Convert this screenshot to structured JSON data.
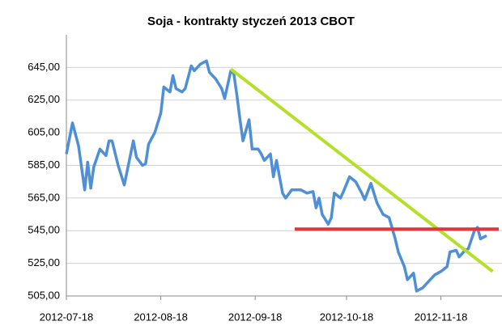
{
  "chart_data": {
    "type": "line",
    "title": "Soja - kontrakty styczeń 2013 CBOT",
    "color": "#4f8fd6",
    "x": [
      "2012-07-18",
      "2012-07-20",
      "2012-07-22",
      "2012-07-24",
      "2012-07-25",
      "2012-07-26",
      "2012-07-27",
      "2012-07-29",
      "2012-07-31",
      "2012-08-01",
      "2012-08-02",
      "2012-08-04",
      "2012-08-06",
      "2012-08-09",
      "2012-08-10",
      "2012-08-12",
      "2012-08-13",
      "2012-08-14",
      "2012-08-16",
      "2012-08-18",
      "2012-08-19",
      "2012-08-21",
      "2012-08-22",
      "2012-08-23",
      "2012-08-25",
      "2012-08-26",
      "2012-08-28",
      "2012-08-29",
      "2012-08-31",
      "2012-09-02",
      "2012-09-03",
      "2012-09-05",
      "2012-09-07",
      "2012-09-08",
      "2012-09-10",
      "2012-09-11",
      "2012-09-12",
      "2012-09-13",
      "2012-09-14",
      "2012-09-16",
      "2012-09-17",
      "2012-09-19",
      "2012-09-20",
      "2012-09-21",
      "2012-09-23",
      "2012-09-24",
      "2012-09-25",
      "2012-09-27",
      "2012-09-28",
      "2012-09-30",
      "2012-10-03",
      "2012-10-05",
      "2012-10-07",
      "2012-10-08",
      "2012-10-09",
      "2012-10-10",
      "2012-10-12",
      "2012-10-13",
      "2012-10-14",
      "2012-10-16",
      "2012-10-17",
      "2012-10-19",
      "2012-10-21",
      "2012-10-23",
      "2012-10-24",
      "2012-10-26",
      "2012-10-28",
      "2012-10-30",
      "2012-11-01",
      "2012-11-03",
      "2012-11-04",
      "2012-11-06",
      "2012-11-07",
      "2012-11-09",
      "2012-11-10",
      "2012-11-12",
      "2012-11-14",
      "2012-11-16",
      "2012-11-18",
      "2012-11-20",
      "2012-11-21",
      "2012-11-23",
      "2012-11-24",
      "2012-11-26",
      "2012-11-27",
      "2012-11-29",
      "2012-11-30",
      "2012-12-01",
      "2012-12-03"
    ],
    "values": [
      592,
      611,
      597,
      570,
      587,
      571,
      584,
      595,
      591,
      600,
      600,
      585,
      573,
      600,
      590,
      585,
      586,
      598,
      605,
      617,
      633,
      630,
      640,
      632,
      630,
      632,
      646,
      643,
      647,
      649,
      642,
      638,
      632,
      626,
      643,
      641,
      628,
      613,
      600,
      613,
      595,
      595,
      592,
      588,
      592,
      578,
      588,
      568,
      565,
      570,
      570,
      568,
      569,
      559,
      565,
      555,
      549,
      553,
      568,
      565,
      569,
      578,
      575,
      568,
      564,
      574,
      562,
      555,
      553,
      540,
      532,
      523,
      515,
      519,
      508,
      510,
      514,
      518,
      520,
      523,
      532,
      533,
      529,
      533,
      534,
      545,
      547,
      540,
      542
    ],
    "lines": [
      {
        "color": "#b5e02a",
        "x": [
          "2012-09-10",
          "2012-12-05"
        ],
        "values": [
          644,
          520
        ]
      },
      {
        "color": "#e8323c",
        "x": [
          "2012-10-01",
          "2012-12-07"
        ],
        "values": [
          546,
          546
        ]
      }
    ],
    "xlim": [
      "2012-07-18",
      "2012-12-07"
    ],
    "xticks": [
      "2012-07-18",
      "2012-08-18",
      "2012-09-18",
      "2012-10-18",
      "2012-11-18"
    ],
    "ylim": [
      505,
      665
    ],
    "yticks": [
      {
        "value": 505,
        "label": "505,00"
      },
      {
        "value": 525,
        "label": "525,00"
      },
      {
        "value": 545,
        "label": "545,00"
      },
      {
        "value": 565,
        "label": "565,00"
      },
      {
        "value": 585,
        "label": "585,00"
      },
      {
        "value": 605,
        "label": "605,00"
      },
      {
        "value": 625,
        "label": "625,00"
      },
      {
        "value": 645,
        "label": "645,00"
      }
    ],
    "grid": true
  }
}
